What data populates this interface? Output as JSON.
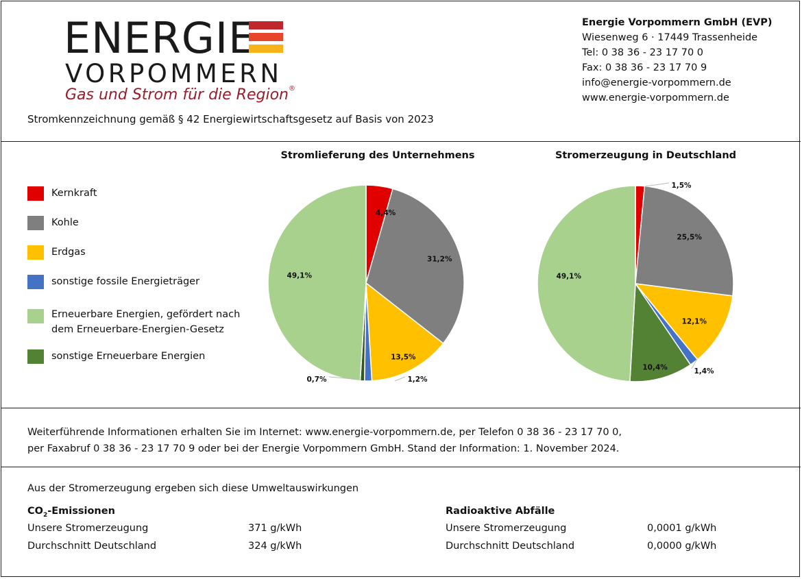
{
  "logo": {
    "line1": "ENERGIE",
    "line2": "VORPOMMERN",
    "tagline": "Gas und Strom für die Region",
    "registered": "®",
    "stripe_colors": [
      "#c0272d",
      "#e8462b",
      "#f9b31a"
    ]
  },
  "company": {
    "name": "Energie Vorpommern GmbH (EVP)",
    "address": "Wiesenweg 6 · 17449 Trassenheide",
    "tel": "Tel: 0 38 36 -  23 17 70 0",
    "fax": "Fax: 0 38 36 - 23 17 70 9",
    "email": "info@energie-vorpommern.de",
    "web": "www.energie-vorpommern.de"
  },
  "subtitle": "Stromkennzeichnung gemäß § 42 Energiewirtschaftsgesetz auf Basis von 2023",
  "legend": [
    {
      "label": "Kernkraft",
      "color": "#e00000"
    },
    {
      "label": "Kohle",
      "color": "#7f7f7f"
    },
    {
      "label": "Erdgas",
      "color": "#ffc000"
    },
    {
      "label": "sonstige fossile Energieträger",
      "color": "#4472c4"
    },
    {
      "label": "Erneuerbare Energien, gefördert nach dem Erneuerbare-Energien-Gesetz",
      "color": "#a9d18e"
    },
    {
      "label": "sonstige Erneuerbare Energien",
      "color": "#548235"
    }
  ],
  "chart_data": [
    {
      "type": "pie",
      "title": "Stromlieferung des Unternehmens",
      "categories": [
        "Kernkraft",
        "Kohle",
        "Erdgas",
        "sonstige fossile Energieträger",
        "sonstige Erneuerbare Energien",
        "Erneuerbare Energien, gefördert nach dem Erneuerbare-Energien-Gesetz"
      ],
      "values": [
        4.4,
        31.2,
        13.5,
        1.2,
        0.7,
        49.1
      ],
      "labels": [
        "4,4%",
        "31,2%",
        "13,5%",
        "1,2%",
        "0,7%",
        "49,1%"
      ],
      "colors": [
        "#e00000",
        "#7f7f7f",
        "#ffc000",
        "#4472c4",
        "#375623",
        "#a9d18e"
      ]
    },
    {
      "type": "pie",
      "title": "Stromerzeugung in Deutschland",
      "categories": [
        "Kernkraft",
        "Kohle",
        "Erdgas",
        "sonstige fossile Energieträger",
        "sonstige Erneuerbare Energien",
        "Erneuerbare Energien, gefördert nach dem Erneuerbare-Energien-Gesetz"
      ],
      "values": [
        1.5,
        25.5,
        12.1,
        1.4,
        10.4,
        49.1
      ],
      "labels": [
        "1,5%",
        "25,5%",
        "12,1%",
        "1,4%",
        "10,4%",
        "49,1%"
      ],
      "colors": [
        "#e00000",
        "#7f7f7f",
        "#ffc000",
        "#4472c4",
        "#548235",
        "#a9d18e"
      ]
    }
  ],
  "info": {
    "line1": "Weiterführende Informationen erhalten Sie im Internet: www.energie-vorpommern.de, per Telefon 0 38 36 - 23 17 70 0,",
    "line2": "per Faxabruf 0 38 36 - 23 17 70 9 oder bei der Energie Vorpommern GmbH. Stand der Information: 1. November 2024."
  },
  "environment": {
    "intro": "Aus der Stromerzeugung ergeben sich diese Umweltauswirkungen",
    "co2": {
      "heading_pre": "CO",
      "heading_sub": "2",
      "heading_post": "-Emissionen",
      "rows": [
        {
          "label": "Unsere Stromerzeugung",
          "value": "371 g/kWh"
        },
        {
          "label": "Durchschnitt Deutschland",
          "value": "324 g/kWh"
        }
      ]
    },
    "radio": {
      "heading": "Radioaktive Abfälle",
      "rows": [
        {
          "label": "Unsere Stromerzeugung",
          "value": "0,0001 g/kWh"
        },
        {
          "label": "Durchschnitt Deutschland",
          "value": "0,0000 g/kWh"
        }
      ]
    }
  }
}
